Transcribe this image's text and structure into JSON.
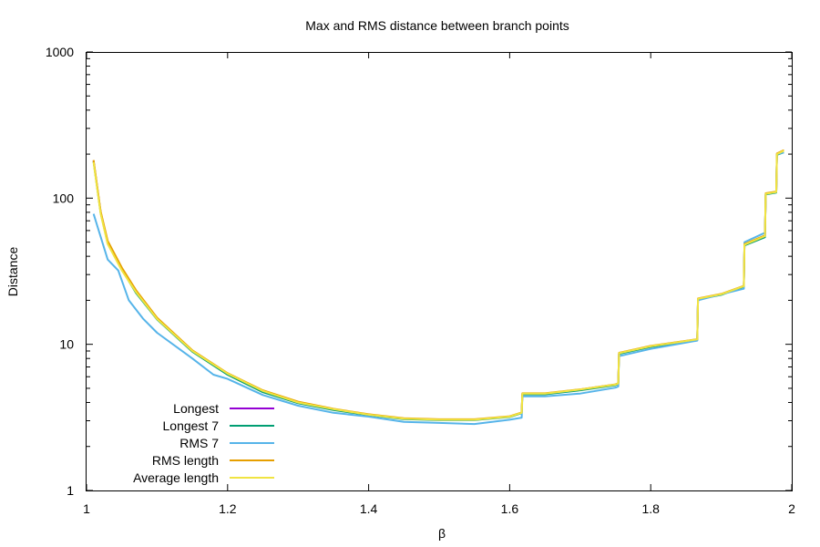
{
  "chart_data": {
    "type": "line",
    "title": "Max and RMS distance between branch points",
    "xlabel": "β",
    "ylabel": "Distance",
    "y_scale": "log",
    "xlim": [
      1,
      2
    ],
    "ylim": [
      1,
      1000
    ],
    "x_ticks": [
      {
        "value": 1,
        "label": "1"
      },
      {
        "value": 1.2,
        "label": "1.2"
      },
      {
        "value": 1.4,
        "label": "1.4"
      },
      {
        "value": 1.6,
        "label": "1.6"
      },
      {
        "value": 1.8,
        "label": "1.8"
      },
      {
        "value": 2,
        "label": "2"
      }
    ],
    "y_ticks": [
      {
        "value": 1,
        "label": "1"
      },
      {
        "value": 10,
        "label": "10"
      },
      {
        "value": 100,
        "label": "100"
      },
      {
        "value": 1000,
        "label": "1000"
      }
    ],
    "grid": false,
    "legend_position": "bottom-left",
    "series": [
      {
        "name": "Longest",
        "color": "#9400d3",
        "x": [
          1.01,
          1.02,
          1.03,
          1.05,
          1.07,
          1.1,
          1.15,
          1.2,
          1.25,
          1.3,
          1.35,
          1.4,
          1.45,
          1.5,
          1.55,
          1.6,
          1.617,
          1.618,
          1.65,
          1.7,
          1.75,
          1.754,
          1.755,
          1.8,
          1.866,
          1.867,
          1.9,
          1.932,
          1.933,
          1.962,
          1.963,
          1.978,
          1.979,
          1.988,
          1.989
        ],
        "y": [
          180,
          80,
          50,
          33,
          23,
          15,
          9,
          6.3,
          4.8,
          4.0,
          3.6,
          3.3,
          3.1,
          3.05,
          3.05,
          3.2,
          3.4,
          4.6,
          4.6,
          4.9,
          5.3,
          5.4,
          8.7,
          9.7,
          10.8,
          20.5,
          22,
          25,
          48,
          55,
          107,
          110,
          200,
          210,
          210
        ]
      },
      {
        "name": "Longest 7",
        "color": "#009e73",
        "x": [
          1.01,
          1.02,
          1.03,
          1.05,
          1.07,
          1.1,
          1.15,
          1.2,
          1.25,
          1.3,
          1.35,
          1.4,
          1.45,
          1.5,
          1.55,
          1.6,
          1.617,
          1.618,
          1.65,
          1.7,
          1.75,
          1.754,
          1.755,
          1.8,
          1.866,
          1.867,
          1.9,
          1.932,
          1.933,
          1.962,
          1.963,
          1.978,
          1.979,
          1.988,
          1.989
        ],
        "y": [
          178,
          79,
          49,
          32.5,
          22.5,
          14.8,
          8.9,
          6.2,
          4.7,
          3.95,
          3.55,
          3.28,
          3.08,
          3.03,
          3.03,
          3.18,
          3.38,
          4.55,
          4.55,
          4.85,
          5.25,
          5.35,
          8.6,
          9.6,
          10.7,
          20.3,
          21.8,
          24.8,
          47.5,
          54,
          106,
          109,
          198,
          205,
          205
        ]
      },
      {
        "name": "RMS 7",
        "color": "#56b4e9",
        "x": [
          1.01,
          1.03,
          1.045,
          1.06,
          1.08,
          1.1,
          1.15,
          1.18,
          1.2,
          1.25,
          1.3,
          1.35,
          1.4,
          1.45,
          1.5,
          1.55,
          1.6,
          1.617,
          1.618,
          1.65,
          1.7,
          1.75,
          1.754,
          1.755,
          1.8,
          1.866,
          1.867,
          1.9,
          1.932,
          1.933,
          1.962,
          1.963,
          1.978,
          1.979,
          1.988,
          1.989
        ],
        "y": [
          78,
          38,
          32,
          20,
          15,
          12,
          8,
          6.2,
          5.8,
          4.5,
          3.8,
          3.4,
          3.2,
          2.95,
          2.9,
          2.85,
          3.05,
          3.15,
          4.4,
          4.4,
          4.6,
          5.05,
          5.15,
          8.3,
          9.3,
          10.6,
          20,
          22,
          24,
          50,
          58,
          107,
          110,
          200,
          205,
          205
        ]
      },
      {
        "name": "RMS length",
        "color": "#e69f00",
        "x": [
          1.01,
          1.02,
          1.03,
          1.05,
          1.07,
          1.1,
          1.15,
          1.2,
          1.25,
          1.3,
          1.35,
          1.4,
          1.45,
          1.5,
          1.55,
          1.6,
          1.617,
          1.618,
          1.65,
          1.7,
          1.75,
          1.754,
          1.755,
          1.8,
          1.866,
          1.867,
          1.9,
          1.932,
          1.933,
          1.962,
          1.963,
          1.978,
          1.979,
          1.988,
          1.989
        ],
        "y": [
          182,
          81,
          51,
          33.5,
          23.5,
          15.2,
          9.1,
          6.35,
          4.85,
          4.05,
          3.62,
          3.32,
          3.12,
          3.07,
          3.07,
          3.22,
          3.42,
          4.62,
          4.62,
          4.92,
          5.32,
          5.42,
          8.75,
          9.75,
          10.85,
          20.6,
          22.1,
          25.1,
          48.5,
          55.5,
          108,
          111,
          202,
          212,
          212
        ]
      },
      {
        "name": "Average length",
        "color": "#f0e442",
        "x": [
          1.01,
          1.02,
          1.03,
          1.05,
          1.07,
          1.1,
          1.15,
          1.2,
          1.25,
          1.3,
          1.35,
          1.4,
          1.45,
          1.5,
          1.55,
          1.6,
          1.617,
          1.618,
          1.65,
          1.7,
          1.75,
          1.754,
          1.755,
          1.8,
          1.866,
          1.867,
          1.9,
          1.932,
          1.933,
          1.962,
          1.963,
          1.978,
          1.979,
          1.988,
          1.989
        ],
        "y": [
          176,
          78,
          48.5,
          32,
          22.8,
          14.9,
          9.0,
          6.3,
          4.8,
          4.0,
          3.6,
          3.3,
          3.1,
          3.05,
          3.05,
          3.2,
          3.4,
          4.6,
          4.6,
          4.9,
          5.3,
          5.4,
          8.7,
          9.7,
          10.8,
          20.5,
          22,
          25,
          48,
          55,
          107,
          110,
          200,
          210,
          210
        ]
      }
    ]
  }
}
